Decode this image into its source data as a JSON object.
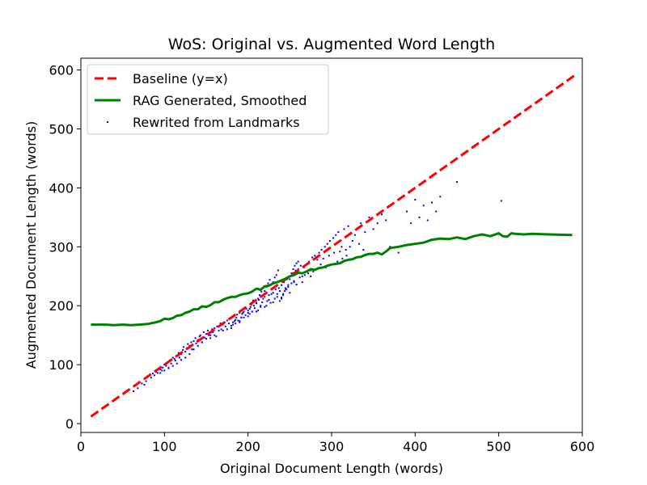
{
  "chart_data": {
    "type": "scatter",
    "title": "WoS: Original vs. Augmented Word Length",
    "xlabel": "Original Document Length (words)",
    "ylabel": "Augmented Document Length (words)",
    "xlim": [
      0,
      600
    ],
    "ylim": [
      -15,
      620
    ],
    "xticks": [
      0,
      100,
      200,
      300,
      400,
      500,
      600
    ],
    "yticks": [
      0,
      100,
      200,
      300,
      400,
      500,
      600
    ],
    "legend_position": "top-left",
    "series": [
      {
        "name": "Baseline (y=x)",
        "kind": "line",
        "style": "dashed",
        "color": "#ff0000",
        "x": [
          12,
          590
        ],
        "y": [
          12,
          590
        ]
      },
      {
        "name": "RAG Generated, Smoothed",
        "kind": "line",
        "style": "solid",
        "color": "#008000",
        "x": [
          12,
          20,
          30,
          40,
          50,
          60,
          70,
          80,
          90,
          95,
          100,
          105,
          110,
          115,
          120,
          125,
          130,
          135,
          140,
          145,
          150,
          155,
          160,
          165,
          170,
          175,
          180,
          185,
          190,
          195,
          200,
          205,
          210,
          215,
          220,
          225,
          230,
          235,
          240,
          245,
          250,
          255,
          260,
          265,
          270,
          275,
          280,
          285,
          290,
          295,
          300,
          305,
          310,
          315,
          320,
          325,
          330,
          335,
          340,
          345,
          350,
          355,
          360,
          365,
          370,
          380,
          390,
          400,
          410,
          420,
          430,
          440,
          450,
          460,
          470,
          480,
          490,
          500,
          505,
          510,
          515,
          520,
          530,
          540,
          560,
          588
        ],
        "y": [
          168,
          168,
          168,
          167,
          168,
          167,
          168,
          169,
          172,
          174,
          178,
          177,
          179,
          183,
          184,
          188,
          190,
          194,
          194,
          199,
          198,
          201,
          206,
          206,
          210,
          213,
          215,
          215,
          218,
          220,
          221,
          224,
          229,
          227,
          233,
          234,
          238,
          240,
          243,
          246,
          250,
          252,
          256,
          255,
          258,
          262,
          261,
          264,
          265,
          268,
          270,
          271,
          272,
          276,
          278,
          279,
          282,
          283,
          286,
          288,
          288,
          290,
          287,
          292,
          298,
          300,
          303,
          305,
          307,
          312,
          314,
          313,
          316,
          313,
          318,
          321,
          318,
          323,
          318,
          317,
          323,
          322,
          321,
          322,
          321,
          320
        ]
      },
      {
        "name": "Rewrited from Landmarks",
        "kind": "scatter",
        "color": "#0000ff",
        "x": [
          63,
          68,
          73,
          76,
          78,
          80,
          84,
          86,
          88,
          90,
          92,
          95,
          97,
          98,
          100,
          102,
          104,
          105,
          107,
          108,
          110,
          112,
          113,
          115,
          117,
          118,
          120,
          122,
          123,
          125,
          127,
          128,
          130,
          132,
          133,
          135,
          137,
          138,
          140,
          142,
          143,
          145,
          147,
          148,
          150,
          152,
          153,
          155,
          157,
          158,
          160,
          162,
          163,
          165,
          167,
          168,
          170,
          172,
          173,
          175,
          177,
          178,
          180,
          182,
          183,
          185,
          187,
          188,
          190,
          192,
          193,
          195,
          197,
          198,
          200,
          202,
          203,
          205,
          207,
          208,
          210,
          212,
          213,
          215,
          217,
          218,
          220,
          222,
          223,
          225,
          227,
          228,
          230,
          232,
          233,
          235,
          237,
          238,
          240,
          242,
          243,
          245,
          247,
          248,
          250,
          252,
          253,
          255,
          257,
          258,
          260,
          262,
          263,
          265,
          267,
          268,
          270,
          272,
          273,
          275,
          277,
          278,
          280,
          282,
          283,
          285,
          287,
          288,
          290,
          292,
          293,
          295,
          297,
          298,
          300,
          302,
          303,
          305,
          307,
          308,
          310,
          312,
          313,
          315,
          317,
          318,
          320,
          322,
          325,
          328,
          330,
          333,
          335,
          338,
          340,
          345,
          350,
          355,
          360,
          365,
          370,
          380,
          390,
          395,
          400,
          405,
          410,
          415,
          420,
          425,
          430,
          450,
          503,
          175,
          185,
          195,
          205,
          215,
          225,
          235,
          245,
          255,
          265,
          275,
          160,
          170,
          180,
          190,
          200,
          210,
          220,
          230,
          240,
          250,
          250,
          248,
          252,
          246,
          254,
          244,
          256,
          242,
          258,
          240,
          260,
          238,
          230,
          232,
          234,
          236,
          220,
          222,
          224,
          226,
          210,
          212,
          214,
          216,
          200,
          202,
          204,
          206,
          190,
          192,
          194,
          196,
          180,
          182,
          184,
          186,
          140,
          145,
          150,
          155,
          130,
          135,
          125,
          120,
          115,
          110,
          105,
          100,
          95
        ],
        "y": [
          55,
          60,
          68,
          66,
          72,
          80,
          78,
          85,
          82,
          88,
          86,
          92,
          90,
          95,
          100,
          98,
          104,
          95,
          108,
          102,
          112,
          110,
          107,
          115,
          120,
          112,
          118,
          125,
          130,
          122,
          128,
          135,
          132,
          138,
          126,
          140,
          145,
          136,
          142,
          148,
          150,
          138,
          155,
          146,
          152,
          158,
          150,
          145,
          160,
          155,
          162,
          148,
          165,
          158,
          170,
          160,
          168,
          172,
          165,
          175,
          170,
          178,
          180,
          172,
          182,
          176,
          185,
          175,
          188,
          180,
          186,
          190,
          184,
          195,
          192,
          186,
          198,
          190,
          200,
          196,
          204,
          192,
          210,
          198,
          206,
          212,
          215,
          200,
          208,
          218,
          205,
          220,
          222,
          212,
          228,
          215,
          230,
          225,
          235,
          220,
          240,
          228,
          245,
          232,
          250,
          238,
          255,
          242,
          260,
          236,
          262,
          248,
          268,
          240,
          265,
          252,
          270,
          255,
          275,
          250,
          282,
          258,
          285,
          262,
          278,
          290,
          270,
          295,
          280,
          300,
          265,
          305,
          285,
          310,
          270,
          315,
          290,
          320,
          275,
          325,
          292,
          300,
          280,
          330,
          295,
          285,
          335,
          300,
          310,
          320,
          330,
          305,
          340,
          295,
          325,
          350,
          330,
          340,
          355,
          345,
          300,
          290,
          360,
          340,
          380,
          350,
          370,
          345,
          375,
          360,
          385,
          410,
          378,
          160,
          170,
          180,
          190,
          200,
          210,
          220,
          230,
          240,
          250,
          260,
          150,
          158,
          166,
          174,
          182,
          190,
          198,
          206,
          214,
          222,
          245,
          235,
          255,
          228,
          262,
          225,
          268,
          218,
          272,
          212,
          275,
          208,
          240,
          248,
          252,
          260,
          225,
          232,
          238,
          244,
          205,
          212,
          218,
          224,
          188,
          195,
          202,
          209,
          172,
          180,
          188,
          196,
          162,
          168,
          174,
          180,
          132,
          138,
          144,
          150,
          118,
          126,
          112,
          108,
          102,
          98,
          94,
          90,
          86
        ]
      }
    ]
  }
}
